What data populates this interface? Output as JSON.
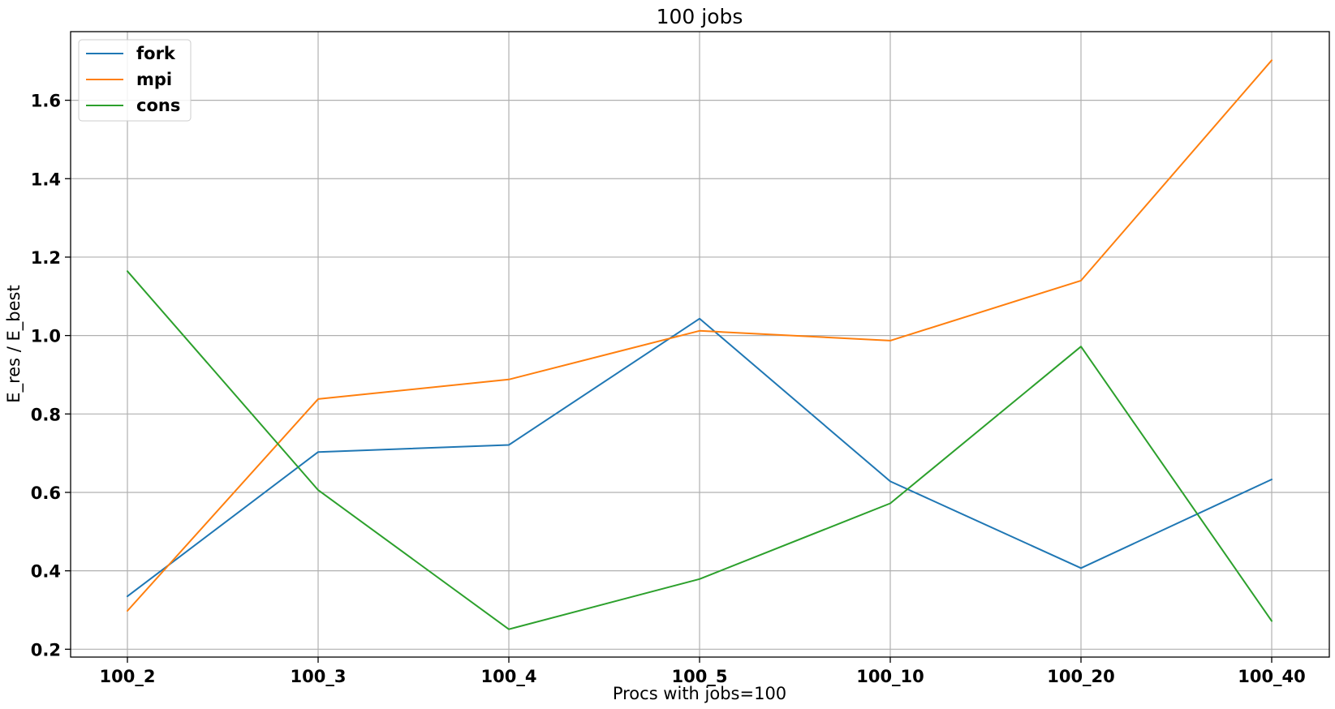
{
  "chart_data": {
    "type": "line",
    "title": "100 jobs",
    "xlabel": "Procs with jobs=100",
    "ylabel": "E_res / E_best",
    "categories": [
      "100_2",
      "100_3",
      "100_4",
      "100_5",
      "100_10",
      "100_20",
      "100_40"
    ],
    "ylim": [
      0.18,
      1.775
    ],
    "yticks": [
      0.2,
      0.4,
      0.6,
      0.8,
      1.0,
      1.2,
      1.4,
      1.6
    ],
    "ytick_labels": [
      "0.2",
      "0.4",
      "0.6",
      "0.8",
      "1.0",
      "1.2",
      "1.4",
      "1.6"
    ],
    "grid": true,
    "legend_position": "top-left",
    "series": [
      {
        "name": "fork",
        "color": "#1f77b4",
        "values": [
          0.335,
          0.703,
          0.721,
          1.043,
          0.628,
          0.407,
          0.633
        ]
      },
      {
        "name": "mpi",
        "color": "#ff7f0e",
        "values": [
          0.298,
          0.838,
          0.888,
          1.012,
          0.987,
          1.14,
          1.702
        ]
      },
      {
        "name": "cons",
        "color": "#2ca02c",
        "values": [
          1.164,
          0.606,
          0.251,
          0.379,
          0.572,
          0.972,
          0.272
        ]
      }
    ]
  }
}
